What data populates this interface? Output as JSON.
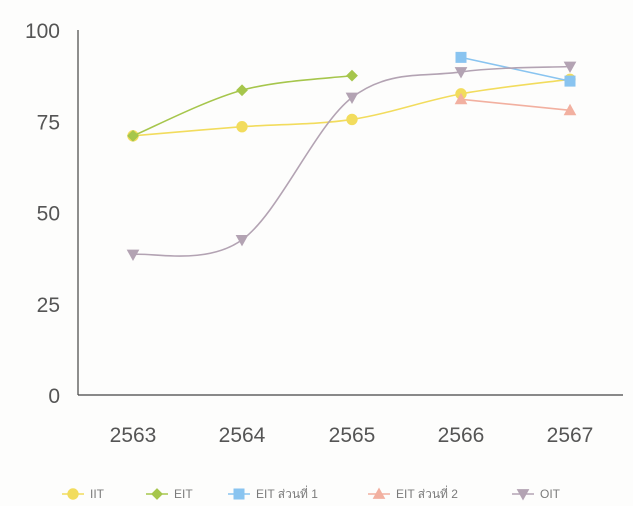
{
  "chart_data": {
    "type": "line",
    "title": "",
    "xlabel": "",
    "ylabel": "",
    "categories": [
      "2563",
      "2564",
      "2565",
      "2566",
      "2567"
    ],
    "y_ticks": [
      "0",
      "25",
      "50",
      "75",
      "100"
    ],
    "ylim": [
      0,
      100
    ],
    "grid": false,
    "legend_position": "bottom",
    "series": [
      {
        "name": "IIT",
        "color": "#f2dc5d",
        "marker": "circle",
        "values": [
          71,
          73.5,
          75.5,
          82.5,
          86.5
        ]
      },
      {
        "name": "EIT",
        "color": "#a6c64c",
        "marker": "diamond",
        "values": [
          71,
          83.5,
          87.5,
          null,
          null
        ]
      },
      {
        "name": "EIT ส่วนที่ 1",
        "color": "#89c4f0",
        "marker": "square",
        "values": [
          null,
          null,
          null,
          92.5,
          86
        ]
      },
      {
        "name": "EIT ส่วนที่ 2",
        "color": "#f2b0a0",
        "marker": "triangle",
        "values": [
          null,
          null,
          null,
          81,
          78
        ]
      },
      {
        "name": "OIT",
        "color": "#b3a3b3",
        "marker": "triangle-down",
        "values": [
          38.5,
          42.5,
          81.5,
          88.5,
          90
        ]
      }
    ]
  }
}
